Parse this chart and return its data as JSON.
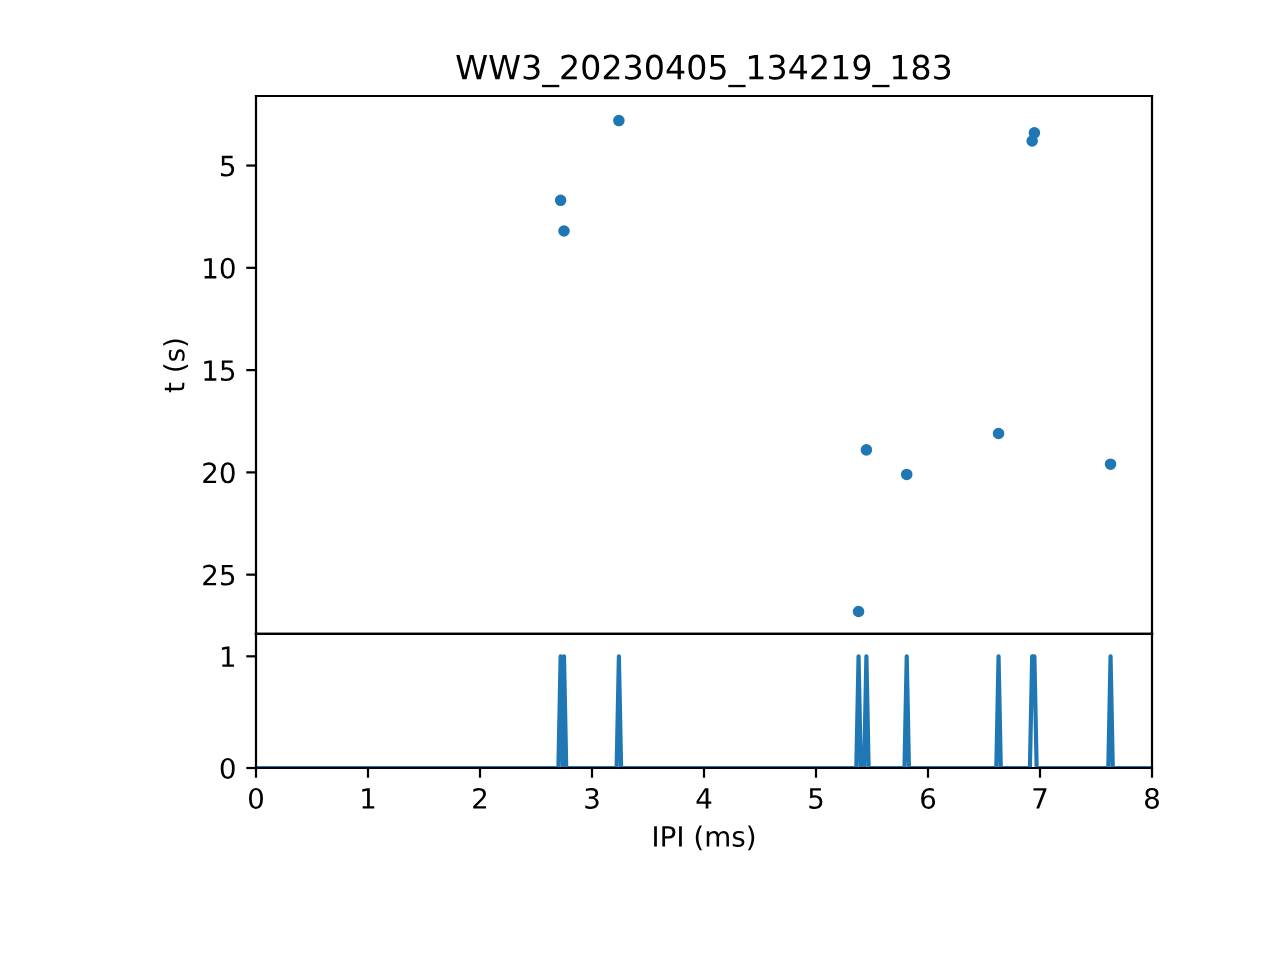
{
  "chart_data": [
    {
      "type": "scatter",
      "title": "WW3_20230405_134219_183",
      "ylabel": "t (s)",
      "xlim": [
        0,
        8
      ],
      "ylim": [
        27.9,
        1.6
      ],
      "yticks": [
        5,
        10,
        15,
        20,
        25
      ],
      "tick_labels": "y",
      "marker": "circle",
      "grid": false,
      "series": [
        {
          "color": "#1f77b4",
          "x": [
            2.72,
            2.75,
            3.24,
            5.38,
            5.45,
            5.81,
            6.63,
            6.93,
            6.95,
            7.63
          ],
          "values": [
            6.7,
            8.2,
            2.8,
            26.8,
            18.9,
            20.1,
            18.1,
            3.8,
            3.4,
            19.6
          ]
        }
      ]
    },
    {
      "type": "line",
      "xlabel": "IPI (ms)",
      "xlim": [
        0,
        8
      ],
      "xticks": [
        0,
        1,
        2,
        3,
        4,
        5,
        6,
        7,
        8
      ],
      "ylim": [
        0,
        1.2
      ],
      "yticks": [
        0,
        1
      ],
      "grid": false,
      "marker": "none",
      "line_style": "solid",
      "series": [
        {
          "color": "#1f77b4",
          "x": [
            0,
            2.7,
            2.72,
            2.74,
            2.75,
            2.77,
            3.22,
            3.24,
            3.26,
            5.36,
            5.38,
            5.4,
            5.43,
            5.45,
            5.47,
            5.79,
            5.81,
            5.83,
            6.61,
            6.63,
            6.65,
            6.91,
            6.93,
            6.94,
            6.95,
            6.97,
            7.61,
            7.63,
            7.65,
            8
          ],
          "values": [
            0,
            0,
            1,
            0,
            1,
            0,
            0,
            1,
            0,
            0,
            1,
            0,
            0,
            1,
            0,
            0,
            1,
            0,
            0,
            1,
            0,
            0,
            1,
            1,
            1,
            0,
            0,
            1,
            0,
            0
          ]
        }
      ]
    }
  ]
}
